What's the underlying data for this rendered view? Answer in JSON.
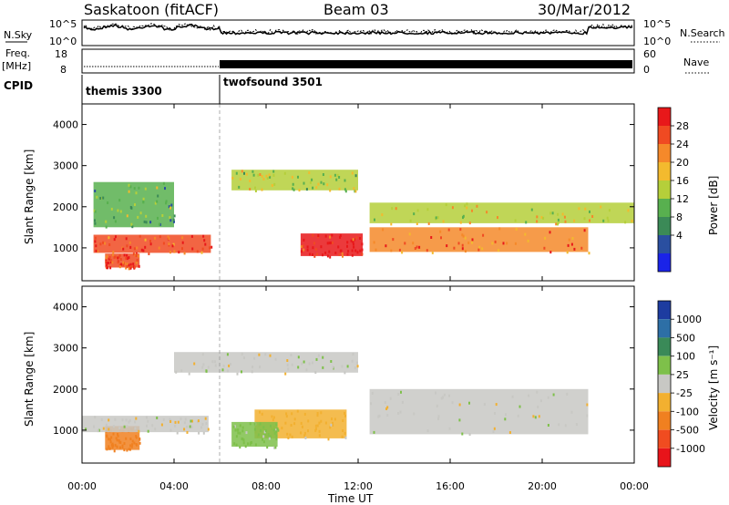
{
  "header": {
    "left_title": "Saskatoon (fitACF)",
    "center_title": "Beam 03",
    "date": "30/Mar/2012"
  },
  "noise_panel": {
    "left_label": "N.Sky",
    "right_label": "N.Search",
    "left_ticks": [
      "10^5",
      "10^0"
    ],
    "right_ticks": [
      "10^5",
      "10^0"
    ]
  },
  "freq_panel": {
    "left_label_line1": "Freq.",
    "left_label_line2": "[MHz]",
    "right_label": "Nave",
    "left_ticks": [
      "18",
      "8"
    ],
    "right_ticks": [
      "60",
      "0"
    ]
  },
  "cpid_panel": {
    "label": "CPID",
    "modes": [
      {
        "name": "themis 3300",
        "start": "00:00",
        "end": "06:00"
      },
      {
        "name": "twofsound 3501",
        "start": "06:00",
        "end": "24:00"
      }
    ]
  },
  "power_colorbar": {
    "label": "Power [dB]",
    "ticks": [
      "28",
      "24",
      "20",
      "16",
      "12",
      "8",
      "4"
    ],
    "colors": [
      "#e8181a",
      "#f04a22",
      "#f5892a",
      "#f3ba2e",
      "#b5cf3a",
      "#58b04f",
      "#3b8a57",
      "#2a4fa0",
      "#1a23e8"
    ]
  },
  "velocity_colorbar": {
    "label": "Velocity [m s⁻¹]",
    "ticks": [
      "1000",
      "500",
      "100",
      "25",
      "-25",
      "-100",
      "-500",
      "-1000"
    ],
    "colors": [
      "#1d3ca0",
      "#2d6fa6",
      "#3a8a58",
      "#7ec04a",
      "#c8c8c4",
      "#f2b030",
      "#f08020",
      "#f04c20",
      "#e8141a"
    ]
  },
  "chart_data": [
    {
      "type": "heatmap",
      "name": "Power range-time plot",
      "ylabel": "Slant Range [km]",
      "xlabel": "Time UT",
      "xlim": [
        "00:00",
        "24:00"
      ],
      "ylim": [
        200,
        4500
      ],
      "yticks": [
        1000,
        2000,
        3000,
        4000
      ],
      "xticks": [
        "00:00",
        "04:00",
        "08:00",
        "12:00",
        "16:00",
        "20:00",
        "00:00"
      ],
      "colorbar": "Power [dB]",
      "regions": [
        {
          "t0": 0.5,
          "t1": 5.6,
          "r0": 880,
          "r1": 1320,
          "value": 24
        },
        {
          "t0": 1.0,
          "t1": 2.5,
          "r0": 520,
          "r1": 860,
          "value": 26
        },
        {
          "t0": 9.5,
          "t1": 12.2,
          "r0": 800,
          "r1": 1350,
          "value": 28
        },
        {
          "t0": 12.5,
          "t1": 22.0,
          "r0": 900,
          "r1": 1500,
          "value": 22
        },
        {
          "t0": 6.5,
          "t1": 12.0,
          "r0": 2400,
          "r1": 2900,
          "value": 12
        },
        {
          "t0": 12.5,
          "t1": 24.0,
          "r0": 1600,
          "r1": 2100,
          "value": 14
        },
        {
          "t0": 0.5,
          "t1": 4.0,
          "r0": 1500,
          "r1": 2600,
          "value": 8
        }
      ]
    },
    {
      "type": "heatmap",
      "name": "Velocity range-time plot",
      "ylabel": "Slant Range [km]",
      "xlabel": "Time UT",
      "xlim": [
        "00:00",
        "24:00"
      ],
      "ylim": [
        200,
        4500
      ],
      "yticks": [
        1000,
        2000,
        3000,
        4000
      ],
      "xticks": [
        "00:00",
        "04:00",
        "08:00",
        "12:00",
        "16:00",
        "20:00",
        "00:00"
      ],
      "colorbar": "Velocity [m s⁻¹]",
      "regions": [
        {
          "t0": 1.0,
          "t1": 2.5,
          "r0": 520,
          "r1": 1100,
          "value": -300
        },
        {
          "t0": 0.0,
          "t1": 5.5,
          "r0": 950,
          "r1": 1350,
          "value": 0
        },
        {
          "t0": 4.0,
          "t1": 12.0,
          "r0": 2400,
          "r1": 2900,
          "value": 0
        },
        {
          "t0": 12.5,
          "t1": 22.0,
          "r0": 900,
          "r1": 2000,
          "value": 0
        },
        {
          "t0": 7.5,
          "t1": 11.5,
          "r0": 800,
          "r1": 1500,
          "value": -60
        },
        {
          "t0": 6.5,
          "t1": 8.5,
          "r0": 600,
          "r1": 1200,
          "value": 60
        }
      ]
    }
  ]
}
